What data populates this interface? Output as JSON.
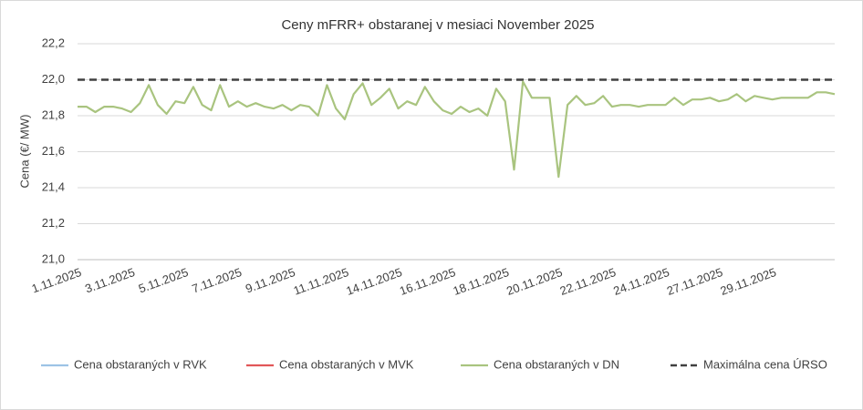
{
  "chart_data": {
    "type": "line",
    "title": "Ceny mFRR+ obstaranej v mesiaci November 2025",
    "y_label": "Cena (€/ MW)",
    "ylim": [
      21.0,
      22.2
    ],
    "yticks": [
      {
        "value": 21.0,
        "label": "21,0"
      },
      {
        "value": 21.2,
        "label": "21,2"
      },
      {
        "value": 21.4,
        "label": "21,4"
      },
      {
        "value": 21.6,
        "label": "21,6"
      },
      {
        "value": 21.8,
        "label": "21,8"
      },
      {
        "value": 22.0,
        "label": "22,0"
      },
      {
        "value": 22.2,
        "label": "22,2"
      }
    ],
    "grid": true,
    "legend": "bottom",
    "categories": [
      "1.11.2025",
      null,
      null,
      null,
      null,
      null,
      "3.11.2025",
      null,
      null,
      null,
      null,
      null,
      "5.11.2025",
      null,
      null,
      null,
      null,
      null,
      "7.11.2025",
      null,
      null,
      null,
      null,
      null,
      "9.11.2025",
      null,
      null,
      null,
      null,
      null,
      "11.11.2025",
      null,
      null,
      null,
      null,
      null,
      "14.11.2025",
      null,
      null,
      null,
      null,
      null,
      "16.11.2025",
      null,
      null,
      null,
      null,
      null,
      "18.11.2025",
      null,
      null,
      null,
      null,
      null,
      "20.11.2025",
      null,
      null,
      null,
      null,
      null,
      "22.11.2025",
      null,
      null,
      null,
      null,
      null,
      "24.11.2025",
      null,
      null,
      null,
      null,
      null,
      "27.11.2025",
      null,
      null,
      null,
      null,
      null,
      "29.11.2025",
      null,
      null,
      null,
      null,
      null,
      null,
      null
    ],
    "series": [
      {
        "name": "Cena obstaraných v RVK",
        "color": "#9dc3e6",
        "dash": false,
        "values": [
          null,
          null,
          null,
          null,
          null,
          null,
          null,
          null,
          null,
          null,
          null,
          null,
          null,
          null,
          null,
          null,
          null,
          null,
          null,
          null,
          null,
          null,
          null,
          null,
          null,
          null,
          null,
          null,
          null,
          null,
          null,
          null,
          null,
          null,
          null,
          null,
          null,
          null,
          null,
          null,
          null,
          null,
          null,
          null,
          null,
          null,
          null,
          null,
          null,
          null,
          null,
          null,
          null,
          null,
          null,
          null,
          null,
          null,
          null,
          null,
          null,
          null,
          null,
          null,
          null,
          null,
          null,
          null,
          null,
          null,
          null,
          null,
          null,
          null,
          null,
          null,
          null,
          null,
          null,
          null,
          null,
          null,
          null,
          null,
          null,
          null
        ]
      },
      {
        "name": "Cena obstaraných v MVK",
        "color": "#e15759",
        "dash": false,
        "values": [
          null,
          null,
          null,
          null,
          null,
          null,
          null,
          null,
          null,
          null,
          null,
          null,
          null,
          null,
          null,
          null,
          null,
          null,
          null,
          null,
          null,
          null,
          null,
          null,
          null,
          null,
          null,
          null,
          null,
          null,
          null,
          null,
          null,
          null,
          null,
          null,
          null,
          null,
          null,
          null,
          null,
          null,
          null,
          null,
          null,
          null,
          null,
          null,
          null,
          null,
          null,
          null,
          null,
          null,
          null,
          null,
          null,
          null,
          null,
          null,
          null,
          null,
          null,
          null,
          null,
          null,
          null,
          null,
          null,
          null,
          null,
          null,
          null,
          null,
          null,
          null,
          null,
          null,
          null,
          null,
          null,
          null,
          null,
          null,
          null,
          null
        ]
      },
      {
        "name": "Cena obstaraných v DN",
        "color": "#a9c47f",
        "dash": false,
        "values": [
          21.85,
          21.85,
          21.82,
          21.85,
          21.85,
          21.84,
          21.82,
          21.87,
          21.97,
          21.86,
          21.81,
          21.88,
          21.87,
          21.96,
          21.86,
          21.83,
          21.97,
          21.85,
          21.88,
          21.85,
          21.87,
          21.85,
          21.84,
          21.86,
          21.83,
          21.86,
          21.85,
          21.8,
          21.97,
          21.84,
          21.78,
          21.92,
          21.98,
          21.86,
          21.9,
          21.95,
          21.84,
          21.88,
          21.86,
          21.96,
          21.88,
          21.83,
          21.81,
          21.85,
          21.82,
          21.84,
          21.8,
          21.95,
          21.88,
          21.5,
          21.99,
          21.9,
          21.9,
          21.9,
          21.46,
          21.86,
          21.91,
          21.86,
          21.87,
          21.91,
          21.85,
          21.86,
          21.86,
          21.85,
          21.86,
          21.86,
          21.86,
          21.9,
          21.86,
          21.89,
          21.89,
          21.9,
          21.88,
          21.89,
          21.92,
          21.88,
          21.91,
          21.9,
          21.89,
          21.9,
          21.9,
          21.9,
          21.9,
          21.93,
          21.93,
          21.92
        ]
      },
      {
        "name": "Maximálna cena ÚRSO",
        "color": "#404040",
        "dash": true,
        "values": [
          22,
          22,
          22,
          22,
          22,
          22,
          22,
          22,
          22,
          22,
          22,
          22,
          22,
          22,
          22,
          22,
          22,
          22,
          22,
          22,
          22,
          22,
          22,
          22,
          22,
          22,
          22,
          22,
          22,
          22,
          22,
          22,
          22,
          22,
          22,
          22,
          22,
          22,
          22,
          22,
          22,
          22,
          22,
          22,
          22,
          22,
          22,
          22,
          22,
          22,
          22,
          22,
          22,
          22,
          22,
          22,
          22,
          22,
          22,
          22,
          22,
          22,
          22,
          22,
          22,
          22,
          22,
          22,
          22,
          22,
          22,
          22,
          22,
          22,
          22,
          22,
          22,
          22,
          22,
          22,
          22,
          22,
          22,
          22,
          22,
          22
        ]
      }
    ]
  }
}
